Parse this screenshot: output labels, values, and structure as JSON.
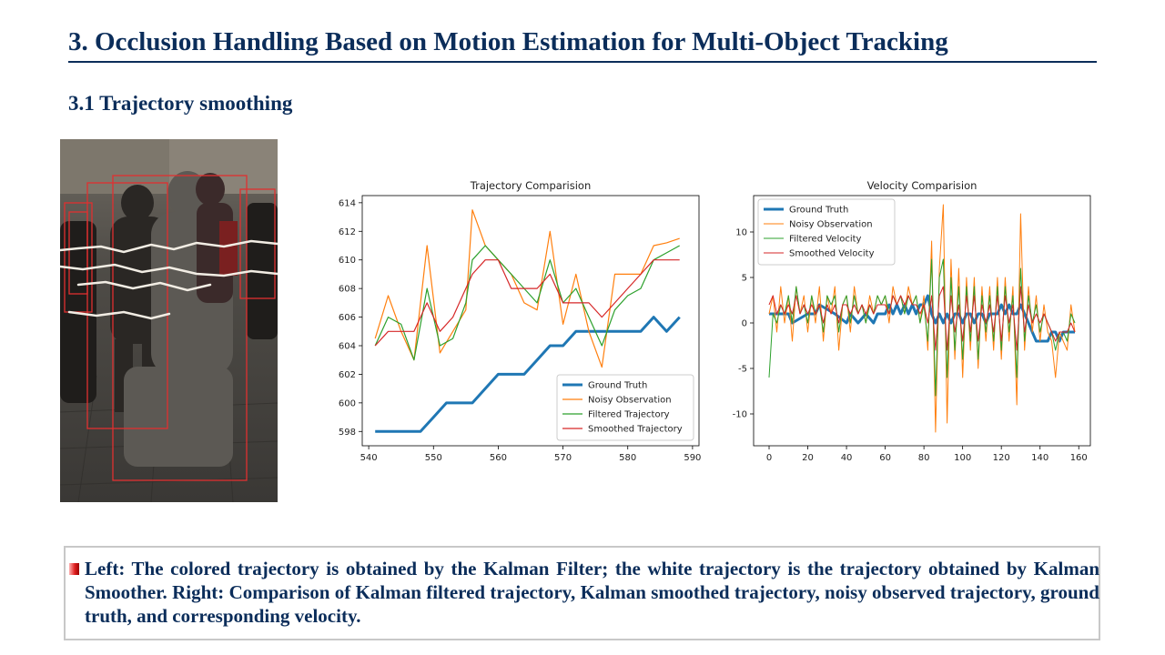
{
  "slide": {
    "title": "3. Occlusion Handling Based on Motion Estimation for Multi-Object Tracking",
    "subtitle": "3.1 Trajectory smoothing",
    "caption": "Left: The colored trajectory is obtained by the Kalman Filter; the white trajectory is the trajectory obtained by Kalman Smoother. Right: Comparison of Kalman filtered trajectory, Kalman smoothed trajectory, noisy observed trajectory, ground truth, and corresponding velocity."
  },
  "colors": {
    "heading": "#0b2d5a",
    "ground_truth": "#1f77b4",
    "noisy": "#ff7f0e",
    "filtered": "#2ca02c",
    "smoothed": "#d62728"
  },
  "chart_data": [
    {
      "type": "line",
      "title": "Trajectory Comparision",
      "xlim": [
        539,
        591
      ],
      "ylim": [
        597,
        614.5
      ],
      "xticks": [
        540,
        550,
        560,
        570,
        580,
        590
      ],
      "yticks": [
        598,
        600,
        602,
        604,
        606,
        608,
        610,
        612,
        614
      ],
      "legend": "lower-right",
      "series": [
        {
          "name": "Ground Truth",
          "color": "#1f77b4",
          "width": 3,
          "x": [
            541,
            542,
            544,
            546,
            548,
            550,
            552,
            553,
            554,
            556,
            558,
            560,
            562,
            564,
            566,
            568,
            570,
            572,
            574,
            576,
            578,
            580,
            582,
            584,
            586,
            588
          ],
          "y": [
            598,
            598,
            598,
            598,
            598,
            599,
            600,
            600,
            600,
            600,
            601,
            602,
            602,
            602,
            603,
            604,
            604,
            605,
            605,
            605,
            605,
            605,
            605,
            606,
            605,
            606
          ]
        },
        {
          "name": "Noisy Observation",
          "color": "#ff7f0e",
          "width": 1.2,
          "x": [
            541,
            543,
            545,
            547,
            549,
            551,
            553,
            555,
            556,
            558,
            560,
            562,
            564,
            566,
            568,
            570,
            572,
            574,
            576,
            578,
            580,
            582,
            584,
            586,
            588
          ],
          "y": [
            604.5,
            607.5,
            605,
            603,
            611,
            603.5,
            605,
            606.5,
            613.5,
            611,
            610,
            609,
            607,
            606.5,
            612,
            605.5,
            609,
            605,
            602.5,
            609,
            609,
            609,
            611,
            611.2,
            611.5
          ]
        },
        {
          "name": "Filtered Trajectory",
          "color": "#2ca02c",
          "width": 1.2,
          "x": [
            541,
            543,
            545,
            547,
            549,
            551,
            553,
            555,
            556,
            558,
            560,
            562,
            564,
            566,
            568,
            570,
            572,
            574,
            576,
            578,
            580,
            582,
            584,
            586,
            588
          ],
          "y": [
            604,
            606,
            605.5,
            603,
            608,
            604,
            604.5,
            607,
            610,
            611,
            610,
            609,
            608,
            607,
            610,
            607,
            608,
            606,
            604,
            606.5,
            607.5,
            608,
            610,
            610.5,
            611
          ]
        },
        {
          "name": "Smoothed Trajectory",
          "color": "#d62728",
          "width": 1.2,
          "x": [
            541,
            543,
            545,
            547,
            549,
            551,
            553,
            555,
            556,
            558,
            560,
            562,
            564,
            566,
            568,
            570,
            572,
            574,
            576,
            578,
            580,
            582,
            584,
            586,
            588
          ],
          "y": [
            604,
            605,
            605,
            605,
            607,
            605,
            606,
            608,
            609,
            610,
            610,
            608,
            608,
            608,
            609,
            607,
            607,
            607,
            606,
            607,
            608,
            609,
            610,
            610,
            610
          ]
        }
      ]
    },
    {
      "type": "line",
      "title": "Velocity Comparision",
      "xlim": [
        -8,
        166
      ],
      "ylim": [
        -13.5,
        14
      ],
      "xticks": [
        0,
        20,
        40,
        60,
        80,
        100,
        120,
        140,
        160
      ],
      "yticks": [
        -10,
        -5,
        0,
        5,
        10
      ],
      "legend": "upper-left",
      "series": [
        {
          "name": "Ground Truth",
          "color": "#1f77b4",
          "width": 3,
          "x": [
            0,
            10,
            12,
            20,
            24,
            26,
            34,
            40,
            42,
            46,
            50,
            54,
            56,
            60,
            62,
            64,
            66,
            68,
            70,
            72,
            74,
            76,
            78,
            80,
            82,
            84,
            86,
            88,
            90,
            92,
            94,
            96,
            98,
            100,
            102,
            104,
            106,
            108,
            110,
            112,
            114,
            116,
            118,
            120,
            122,
            124,
            126,
            128,
            130,
            132,
            134,
            136,
            138,
            140,
            142,
            144,
            146,
            148,
            150,
            152,
            154,
            156,
            158
          ],
          "y": [
            1,
            1,
            0,
            1,
            1,
            2,
            1,
            0,
            1,
            0,
            1,
            0,
            1,
            1,
            2,
            1,
            2,
            1,
            2,
            1,
            2,
            1,
            2,
            2,
            3,
            1,
            0,
            1,
            0,
            1,
            0,
            1,
            1,
            0,
            1,
            1,
            0,
            1,
            1,
            0,
            1,
            1,
            1,
            2,
            1,
            2,
            1,
            1,
            2,
            1,
            0,
            -1,
            -2,
            -2,
            -2,
            -2,
            -1,
            -1,
            -2,
            -1,
            -1,
            -1,
            -1
          ]
        },
        {
          "name": "Noisy Observation",
          "color": "#ff7f0e",
          "width": 1,
          "x": [
            0,
            2,
            4,
            6,
            8,
            10,
            12,
            14,
            16,
            18,
            20,
            22,
            24,
            26,
            28,
            30,
            32,
            34,
            36,
            38,
            40,
            42,
            44,
            46,
            48,
            50,
            52,
            54,
            56,
            58,
            60,
            62,
            64,
            66,
            68,
            70,
            72,
            74,
            76,
            78,
            80,
            82,
            84,
            86,
            88,
            90,
            92,
            94,
            96,
            98,
            100,
            102,
            104,
            106,
            108,
            110,
            112,
            114,
            116,
            118,
            120,
            122,
            124,
            126,
            128,
            130,
            132,
            134,
            136,
            138,
            140,
            142,
            144,
            146,
            148,
            150,
            152,
            154,
            156,
            158
          ],
          "y": [
            1,
            3,
            -1,
            4,
            0,
            3,
            -2,
            4,
            1,
            3,
            -1,
            3,
            0,
            4,
            -2,
            3,
            1,
            4,
            -3,
            2,
            3,
            -1,
            4,
            1,
            2,
            0,
            3,
            1,
            3,
            2,
            3,
            0,
            4,
            2,
            3,
            1,
            4,
            2,
            3,
            0,
            3,
            -3,
            9,
            -12,
            6,
            13,
            -11,
            7,
            -4,
            6,
            -6,
            5,
            -3,
            5,
            -5,
            4,
            -2,
            4,
            -3,
            5,
            -4,
            5,
            -2,
            4,
            -9,
            12,
            -3,
            4,
            -1,
            3,
            -2,
            2,
            -1,
            -2,
            -6,
            -1,
            -2,
            -3,
            2,
            -1
          ]
        },
        {
          "name": "Filtered Velocity",
          "color": "#2ca02c",
          "width": 1,
          "x": [
            0,
            2,
            4,
            6,
            8,
            10,
            12,
            14,
            16,
            18,
            20,
            22,
            24,
            26,
            28,
            30,
            32,
            34,
            36,
            38,
            40,
            42,
            44,
            46,
            48,
            50,
            52,
            54,
            56,
            58,
            60,
            62,
            64,
            66,
            68,
            70,
            72,
            74,
            76,
            78,
            80,
            82,
            84,
            86,
            88,
            90,
            92,
            94,
            96,
            98,
            100,
            102,
            104,
            106,
            108,
            110,
            112,
            114,
            116,
            118,
            120,
            122,
            124,
            126,
            128,
            130,
            132,
            134,
            136,
            138,
            140,
            142,
            144,
            146,
            148,
            150,
            152,
            154,
            156,
            158
          ],
          "y": [
            -6,
            1,
            0,
            2,
            1,
            3,
            0,
            4,
            1,
            2,
            0,
            3,
            1,
            2,
            -1,
            3,
            2,
            3,
            -1,
            2,
            3,
            0,
            3,
            1,
            2,
            0,
            2,
            1,
            3,
            2,
            3,
            1,
            3,
            2,
            3,
            1,
            3,
            2,
            3,
            0,
            2,
            -2,
            7,
            -8,
            5,
            7,
            -6,
            5,
            -3,
            4,
            -4,
            4,
            -2,
            4,
            -4,
            3,
            -1,
            3,
            -2,
            4,
            -3,
            4,
            -1,
            3,
            -6,
            6,
            -2,
            3,
            0,
            2,
            -1,
            1,
            0,
            -1,
            -3,
            -1,
            -1,
            -2,
            1,
            0
          ]
        },
        {
          "name": "Smoothed Velocity",
          "color": "#d62728",
          "width": 1,
          "x": [
            0,
            2,
            4,
            6,
            8,
            10,
            12,
            14,
            16,
            18,
            20,
            22,
            24,
            26,
            28,
            30,
            32,
            34,
            36,
            38,
            40,
            42,
            44,
            46,
            48,
            50,
            52,
            54,
            56,
            58,
            60,
            62,
            64,
            66,
            68,
            70,
            72,
            74,
            76,
            78,
            80,
            82,
            84,
            86,
            88,
            90,
            92,
            94,
            96,
            98,
            100,
            102,
            104,
            106,
            108,
            110,
            112,
            114,
            116,
            118,
            120,
            122,
            124,
            126,
            128,
            130,
            132,
            134,
            136,
            138,
            140,
            142,
            144,
            146,
            148,
            150,
            152,
            154,
            156,
            158
          ],
          "y": [
            2,
            3,
            1,
            2,
            1,
            2,
            1,
            3,
            1,
            2,
            1,
            2,
            1,
            2,
            0,
            2,
            1,
            2,
            0,
            2,
            2,
            1,
            2,
            1,
            2,
            1,
            2,
            1,
            2,
            2,
            2,
            1,
            3,
            2,
            3,
            2,
            3,
            2,
            2,
            1,
            2,
            0,
            3,
            -3,
            3,
            4,
            -3,
            3,
            -1,
            2,
            -2,
            3,
            -1,
            3,
            -2,
            2,
            0,
            2,
            -1,
            3,
            -2,
            3,
            0,
            2,
            -3,
            4,
            -1,
            2,
            0,
            1,
            0,
            1,
            0,
            -1,
            -2,
            -1,
            -1,
            -1,
            0,
            -1
          ]
        }
      ]
    }
  ]
}
